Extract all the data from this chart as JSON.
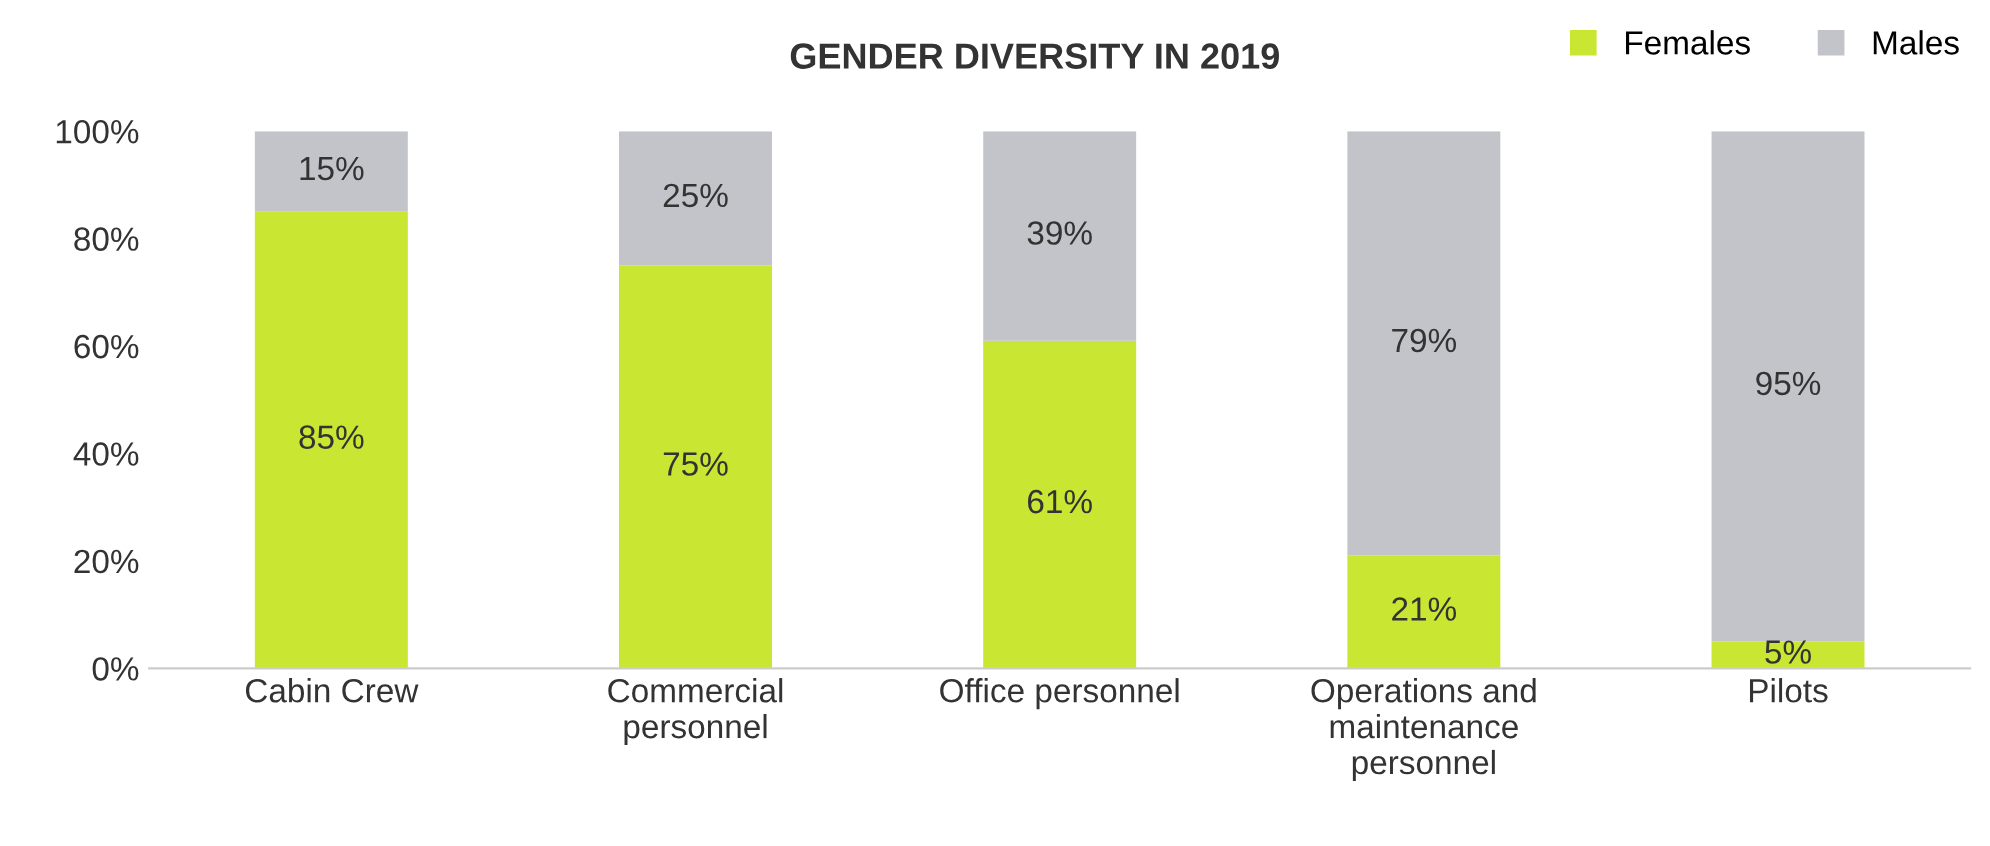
{
  "chart_data": {
    "type": "bar",
    "title": "GENDER DIVERSITY IN 2019",
    "stacked": true,
    "categories": [
      "Cabin Crew",
      "Commercial personnel",
      "Office personnel",
      "Operations and maintenance personnel",
      "Pilots"
    ],
    "series": [
      {
        "name": "Females",
        "color": "#c8e632",
        "values": [
          85,
          75,
          61,
          21,
          5
        ],
        "value_labels": [
          "85%",
          "75%",
          "61%",
          "21%",
          "5%"
        ]
      },
      {
        "name": "Males",
        "color": "#c3c4ca",
        "values": [
          15,
          25,
          39,
          79,
          95
        ],
        "value_labels": [
          "15%",
          "25%",
          "39%",
          "79%",
          "95%"
        ]
      }
    ],
    "ylim": [
      0,
      100
    ],
    "yticks": [
      {
        "value": 0,
        "label": "0%"
      },
      {
        "value": 20,
        "label": "20%"
      },
      {
        "value": 40,
        "label": "40%"
      },
      {
        "value": 60,
        "label": "60%"
      },
      {
        "value": 80,
        "label": "80%"
      },
      {
        "value": 100,
        "label": "100%"
      }
    ],
    "grid": false,
    "legend": "top right"
  }
}
